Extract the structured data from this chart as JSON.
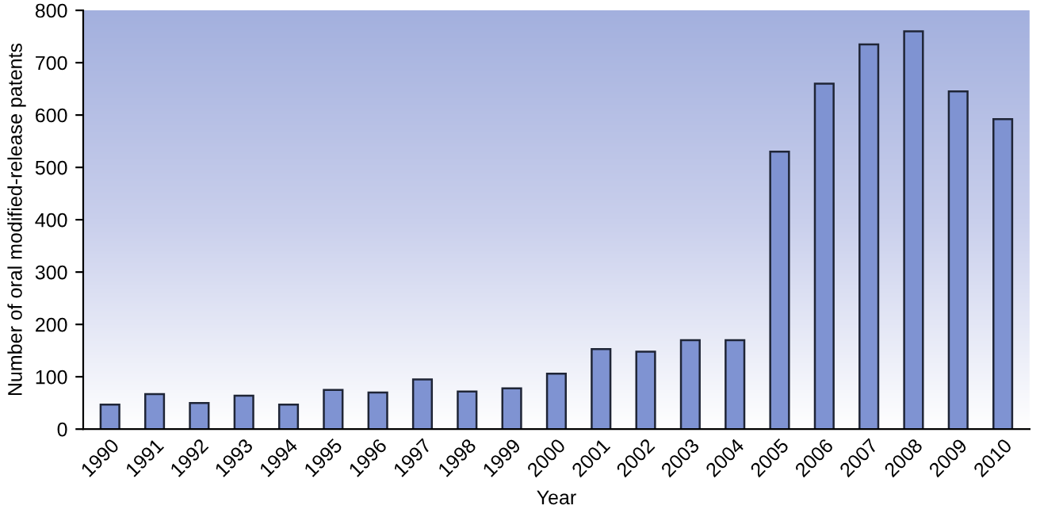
{
  "chart_data": {
    "type": "bar",
    "xlabel": "Year",
    "ylabel": "Number of oral modified-release patents",
    "categories": [
      "1990",
      "1991",
      "1992",
      "1993",
      "1994",
      "1995",
      "1996",
      "1997",
      "1998",
      "1999",
      "2000",
      "2001",
      "2002",
      "2003",
      "2004",
      "2005",
      "2006",
      "2007",
      "2008",
      "2009",
      "2010"
    ],
    "values": [
      47,
      67,
      50,
      64,
      47,
      75,
      70,
      95,
      72,
      78,
      106,
      153,
      148,
      170,
      170,
      530,
      660,
      735,
      760,
      645,
      592
    ],
    "color": "#7f93d2",
    "ylim": [
      0,
      800
    ],
    "yticks": [
      0,
      100,
      200,
      300,
      400,
      500,
      600,
      700,
      800
    ],
    "grid": false,
    "legend": false
  }
}
